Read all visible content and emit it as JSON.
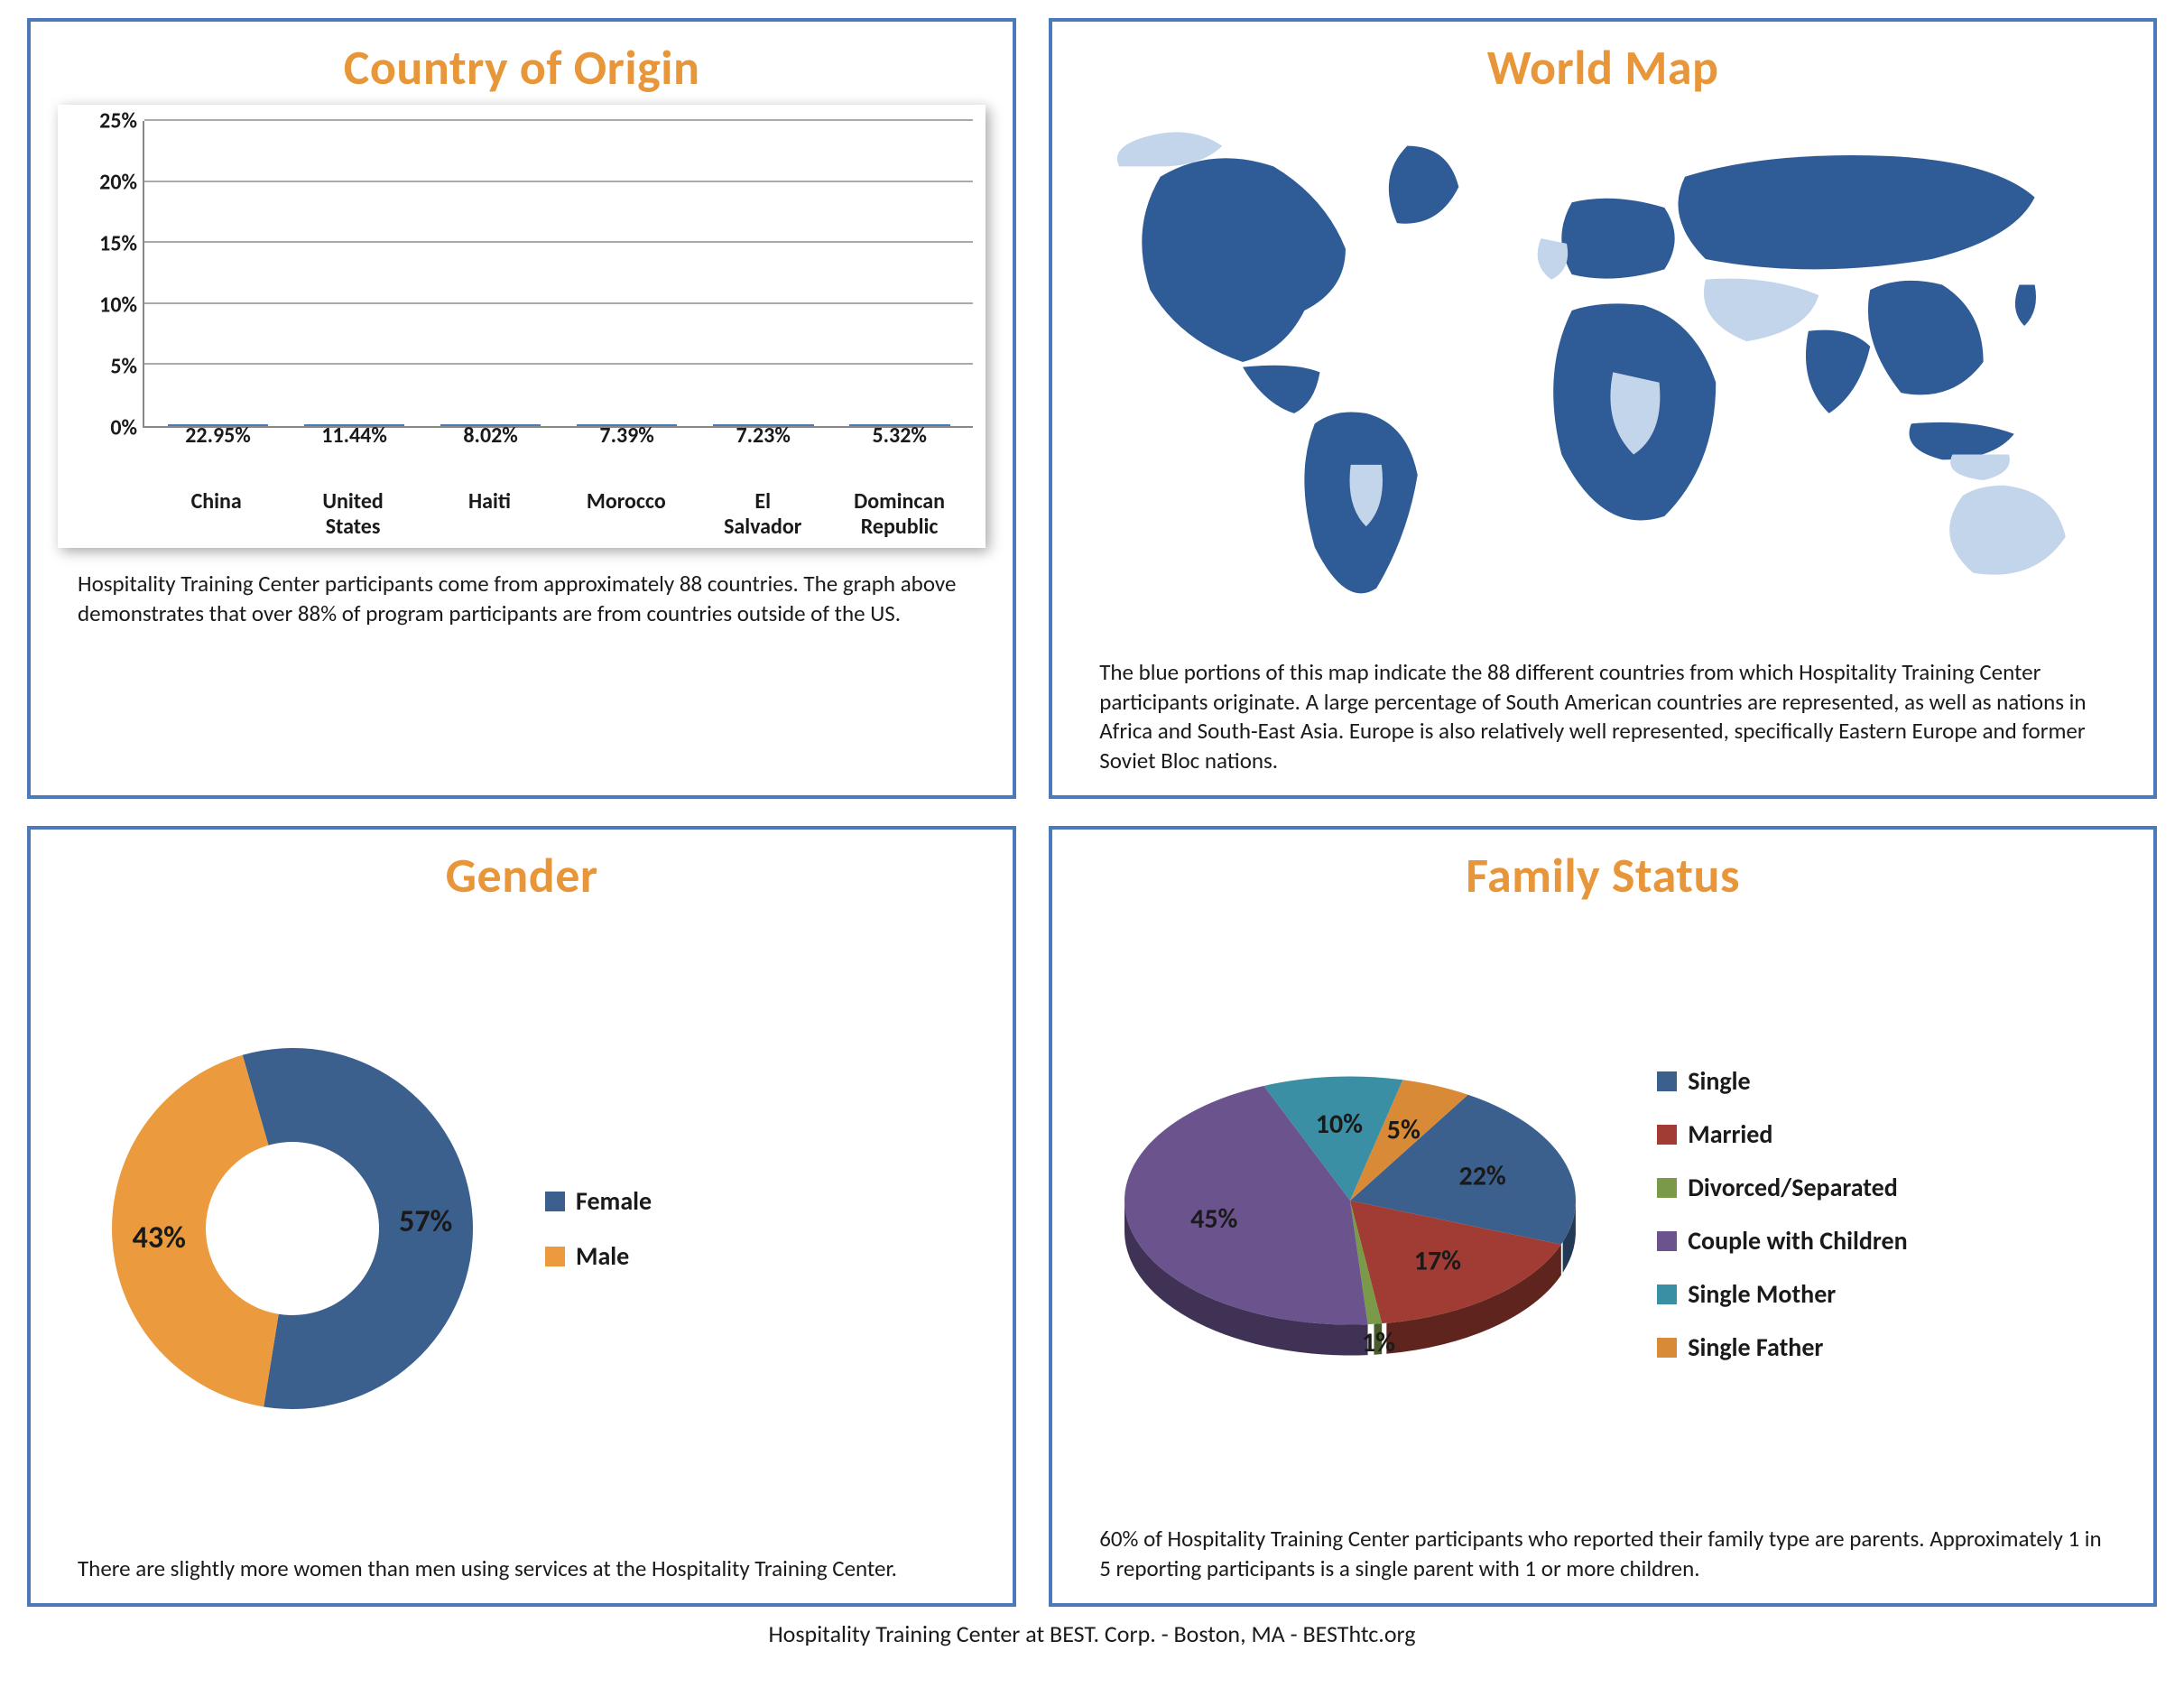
{
  "panels": {
    "country": {
      "title": "Country of Origin",
      "caption": "Hospitality Training Center participants come from approximately 88 countries. The graph above demonstrates that over 88% of program participants are from countries outside of the US.",
      "chart": {
        "type": "bar",
        "ylim": [
          0,
          25
        ],
        "ytick_step": 5,
        "yticks": [
          "0%",
          "5%",
          "10%",
          "15%",
          "20%",
          "25%"
        ],
        "categories": [
          "China",
          "United States",
          "Haiti",
          "Morocco",
          "El Salvador",
          "Domincan Republic"
        ],
        "values": [
          22.95,
          11.44,
          8.02,
          7.39,
          7.23,
          5.32
        ],
        "value_labels": [
          "22.95%",
          "11.44%",
          "8.02%",
          "7.39%",
          "7.23%",
          "5.32%"
        ],
        "bar_color": "#6da0d8",
        "bar_border": "#4a7ab8",
        "grid_color": "#aaaaaa",
        "axis_color": "#888888",
        "label_fontsize": 24,
        "bar_width": 0.74
      }
    },
    "map": {
      "title": "World Map",
      "caption": "The blue portions of this map indicate the 88 different countries from which Hospitality Training Center participants originate. A large percentage of South American countries are represented, as well as nations in Africa and South-East Asia. Europe is also relatively well represented, specifically Eastern Europe and former Soviet Bloc nations.",
      "colors": {
        "highlight": "#2f5b96",
        "other": "#c3d5ea",
        "background": "#ffffff"
      }
    },
    "gender": {
      "title": "Gender",
      "caption": "There are slightly more women than men using services at the Hospitality Training Center.",
      "chart": {
        "type": "donut",
        "series": [
          {
            "label": "Female",
            "value": 57,
            "pct": "57%",
            "color": "#3b608e"
          },
          {
            "label": "Male",
            "value": 43,
            "pct": "43%",
            "color": "#eb9b3e"
          }
        ],
        "inner_radius_ratio": 0.48,
        "label_fontsize": 34
      }
    },
    "family": {
      "title": "Family Status",
      "caption": "60% of Hospitality Training Center participants who reported their family type are parents. Approximately 1 in 5 reporting participants is a single parent with 1 or more children.",
      "chart": {
        "type": "pie3d",
        "series": [
          {
            "label": "Single",
            "value": 22,
            "pct": "22%",
            "color": "#3b608e"
          },
          {
            "label": "Married",
            "value": 17,
            "pct": "17%",
            "color": "#a03c34"
          },
          {
            "label": "Divorced/Separated",
            "value": 1,
            "pct": "1%",
            "color": "#7a9a4a"
          },
          {
            "label": "Couple with Children",
            "value": 45,
            "pct": "45%",
            "color": "#6b548e"
          },
          {
            "label": "Single Mother",
            "value": 10,
            "pct": "10%",
            "color": "#3a8fa4"
          },
          {
            "label": "Single Father",
            "value": 5,
            "pct": "5%",
            "color": "#d98a36"
          }
        ],
        "depth": 34,
        "tilt": 0.55,
        "label_fontsize": 30
      }
    }
  },
  "footer": {
    "org": "Hospitality Training Center at BEST. Corp.",
    "city": "Boston, MA",
    "site": "BESThtc.org",
    "sep": "    -    "
  },
  "title_color": "#e8963a",
  "panel_border_color": "#4a7ab8"
}
